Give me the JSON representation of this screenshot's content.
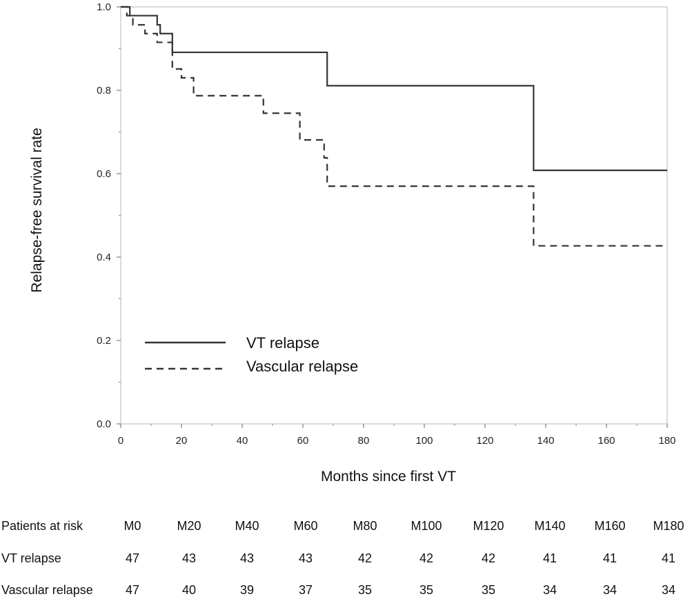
{
  "chart_data": {
    "type": "line",
    "subtype": "kaplan-meier step",
    "title": "",
    "xlabel": "Months since first VT",
    "ylabel": "Relapse-free survival rate",
    "xlim": [
      0,
      180
    ],
    "ylim": [
      0.0,
      1.0
    ],
    "x_ticks": [
      0,
      20,
      40,
      60,
      80,
      100,
      120,
      140,
      160,
      180
    ],
    "y_ticks": [
      0.0,
      0.2,
      0.4,
      0.6,
      0.8,
      1.0
    ],
    "y_tick_labels": [
      "0.0",
      "0.2",
      "0.4",
      "0.6",
      "0.8",
      "1.0"
    ],
    "grid": false,
    "legend_position": "lower-left",
    "series": [
      {
        "name": "VT relapse",
        "style": "solid",
        "x": [
          0,
          3,
          12,
          13,
          17,
          68,
          136,
          180
        ],
        "y": [
          1.0,
          0.979,
          0.957,
          0.936,
          0.891,
          0.811,
          0.608,
          0.608
        ]
      },
      {
        "name": "Vascular relapse",
        "style": "dashed",
        "x": [
          0,
          2,
          4,
          8,
          12,
          17,
          20,
          24,
          47,
          59,
          67,
          68,
          136,
          180
        ],
        "y": [
          1.0,
          0.979,
          0.957,
          0.936,
          0.915,
          0.851,
          0.83,
          0.787,
          0.745,
          0.681,
          0.638,
          0.57,
          0.427,
          0.427
        ]
      }
    ]
  },
  "risk_table": {
    "header_label": "Patients at risk",
    "columns": [
      "M0",
      "M20",
      "M40",
      "M60",
      "M80",
      "M100",
      "M120",
      "M140",
      "M160",
      "M180"
    ],
    "rows": [
      {
        "label": "VT relapse",
        "values": [
          "47",
          "43",
          "43",
          "43",
          "42",
          "42",
          "42",
          "41",
          "41",
          "41"
        ]
      },
      {
        "label": "Vascular relapse",
        "values": [
          "47",
          "40",
          "39",
          "37",
          "35",
          "35",
          "35",
          "34",
          "34",
          "34"
        ]
      }
    ]
  }
}
